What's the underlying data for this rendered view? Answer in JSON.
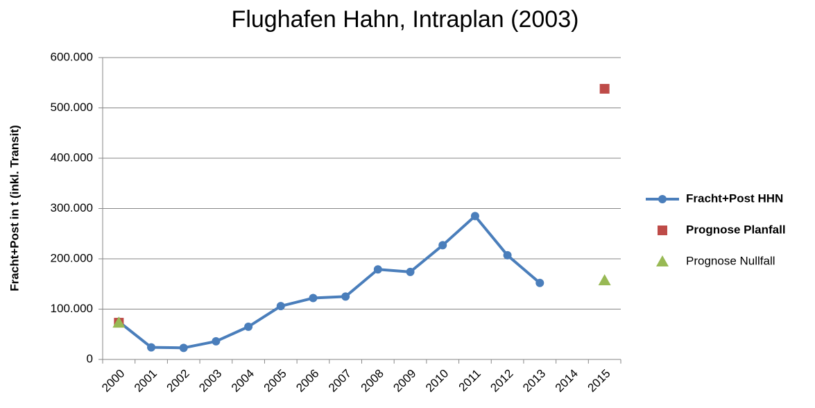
{
  "chart_data": {
    "type": "line",
    "title": "Flughafen Hahn, Intraplan (2003)",
    "y_label": "Fracht+Post in t (inkl. Transit)",
    "categories": [
      "2000",
      "2001",
      "2002",
      "2003",
      "2004",
      "2005",
      "2006",
      "2007",
      "2008",
      "2009",
      "2010",
      "2011",
      "2012",
      "2013",
      "2014",
      "2015"
    ],
    "series": [
      {
        "name": "Fracht+Post HHN",
        "color": "#4a7ebb",
        "marker": "circle",
        "line": true,
        "values": [
          75000,
          24000,
          23000,
          36000,
          65000,
          106000,
          122000,
          125000,
          179000,
          174000,
          227000,
          285000,
          207000,
          152000,
          null,
          null
        ]
      },
      {
        "name": "Prognose Planfall",
        "color": "#be4b48",
        "marker": "square",
        "line": false,
        "values": [
          73000,
          null,
          null,
          null,
          null,
          null,
          null,
          null,
          null,
          null,
          null,
          null,
          null,
          null,
          null,
          538000
        ]
      },
      {
        "name": "Prognose Nullfall",
        "color": "#98b954",
        "marker": "triangle",
        "line": false,
        "values": [
          73000,
          null,
          null,
          null,
          null,
          null,
          null,
          null,
          null,
          null,
          null,
          null,
          null,
          null,
          null,
          157000
        ]
      }
    ],
    "ylim": [
      0,
      600000
    ],
    "yticks": [
      0,
      {
        "value": 100000,
        "label": "100.000"
      },
      {
        "value": 200000,
        "label": "200.000"
      },
      {
        "value": 300000,
        "label": "300.000"
      },
      {
        "value": 400000,
        "label": "400.000"
      },
      {
        "value": 500000,
        "label": "500.000"
      },
      {
        "value": 600000,
        "label": "600.000"
      }
    ],
    "grid": true,
    "legend": "right"
  }
}
